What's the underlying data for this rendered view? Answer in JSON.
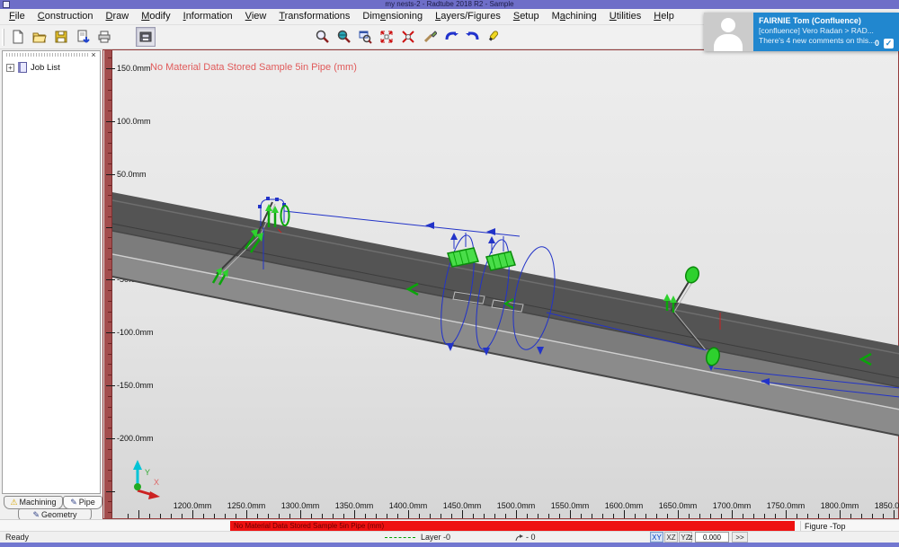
{
  "window": {
    "title": "my nests-2 - Radtube 2018 R2 - Sample"
  },
  "menubar": {
    "items": [
      {
        "label": "File",
        "u": 0
      },
      {
        "label": "Construction",
        "u": 0
      },
      {
        "label": "Draw",
        "u": 0
      },
      {
        "label": "Modify",
        "u": 0
      },
      {
        "label": "Information",
        "u": 0
      },
      {
        "label": "View",
        "u": 0
      },
      {
        "label": "Transformations",
        "u": 0
      },
      {
        "label": "Dimensioning",
        "u": 3
      },
      {
        "label": "Layers/Figures",
        "u": 0
      },
      {
        "label": "Setup",
        "u": 0
      },
      {
        "label": "Machining",
        "u": 1
      },
      {
        "label": "Utilities",
        "u": 0
      },
      {
        "label": "Help",
        "u": 0
      }
    ]
  },
  "toolbar": {
    "groups": [
      [
        "new-file",
        "open",
        "save",
        "print-preview",
        "print"
      ],
      [
        "plot"
      ],
      [
        "zoom",
        "zoom-view",
        "zoom-window",
        "zoom-extents",
        "zoom-unzoom",
        "brush",
        "undo",
        "redo",
        "highlighter"
      ]
    ]
  },
  "notification": {
    "name": "FAIRNIE Tom (Confluence)",
    "line2": "[confluence] Vero Radan > RAD...",
    "line3": "There's 4 new comments on this...",
    "count": "0",
    "check_icon": "✓"
  },
  "sidebar": {
    "tree": {
      "root_label": "Job List",
      "expander": "+"
    },
    "close_label": "×",
    "tabs": [
      {
        "label": "Machining",
        "icon": "warning-icon"
      },
      {
        "label": "Pipe",
        "icon": "pen-icon"
      },
      {
        "label": "Geometry",
        "icon": "pen-icon"
      }
    ]
  },
  "canvas": {
    "warning_text": "No Material Data Stored Sample 5in Pipe (mm)",
    "axis": {
      "y": "Y",
      "x": "X"
    },
    "v_ruler": {
      "unit": "mm",
      "labels": [
        {
          "value": 150,
          "label": "150.0mm"
        },
        {
          "value": 100,
          "label": "100.0mm"
        },
        {
          "value": 50,
          "label": "50.0mm"
        },
        {
          "value": -50,
          "label": "-50.0mm"
        },
        {
          "value": -100,
          "label": "-100.0mm"
        },
        {
          "value": -150,
          "label": "-150.0mm"
        },
        {
          "value": -200,
          "label": "-200.0mm"
        }
      ]
    },
    "h_ruler": {
      "unit": "mm",
      "labels": [
        {
          "value": 1200,
          "label": "1200.0mm"
        },
        {
          "value": 1250,
          "label": "1250.0mm"
        },
        {
          "value": 1300,
          "label": "1300.0mm"
        },
        {
          "value": 1350,
          "label": "1350.0mm"
        },
        {
          "value": 1400,
          "label": "1400.0mm"
        },
        {
          "value": 1450,
          "label": "1450.0mm"
        },
        {
          "value": 1500,
          "label": "1500.0mm"
        },
        {
          "value": 1550,
          "label": "1550.0mm"
        },
        {
          "value": 1600,
          "label": "1600.0mm"
        },
        {
          "value": 1650,
          "label": "1650.0mm"
        },
        {
          "value": 1700,
          "label": "1700.0mm"
        },
        {
          "value": 1750,
          "label": "1750.0mm"
        },
        {
          "value": 1800,
          "label": "1800.0mm"
        },
        {
          "value": 1850,
          "label": "1850.0mm"
        }
      ]
    }
  },
  "banner": {
    "text": "No Material Data Stored Sample 5in Pipe (mm)"
  },
  "figure_label": "Figure -Top",
  "statusbar": {
    "ready": "Ready",
    "layer": "Layer -0",
    "angle": "- 0",
    "plane_buttons": [
      "XY",
      "XZ",
      "YZ"
    ],
    "active_plane": "XY",
    "z_label": "z",
    "z_value": "0.000",
    "more": ">>"
  },
  "colors": {
    "title_bar": "#6e6ec8",
    "canvas_border": "#943c3c",
    "warning_red": "#ee1111",
    "toolpath_blue": "#2233c8",
    "machining_green": "#2ed12e",
    "notification_blue": "#2187cf"
  }
}
